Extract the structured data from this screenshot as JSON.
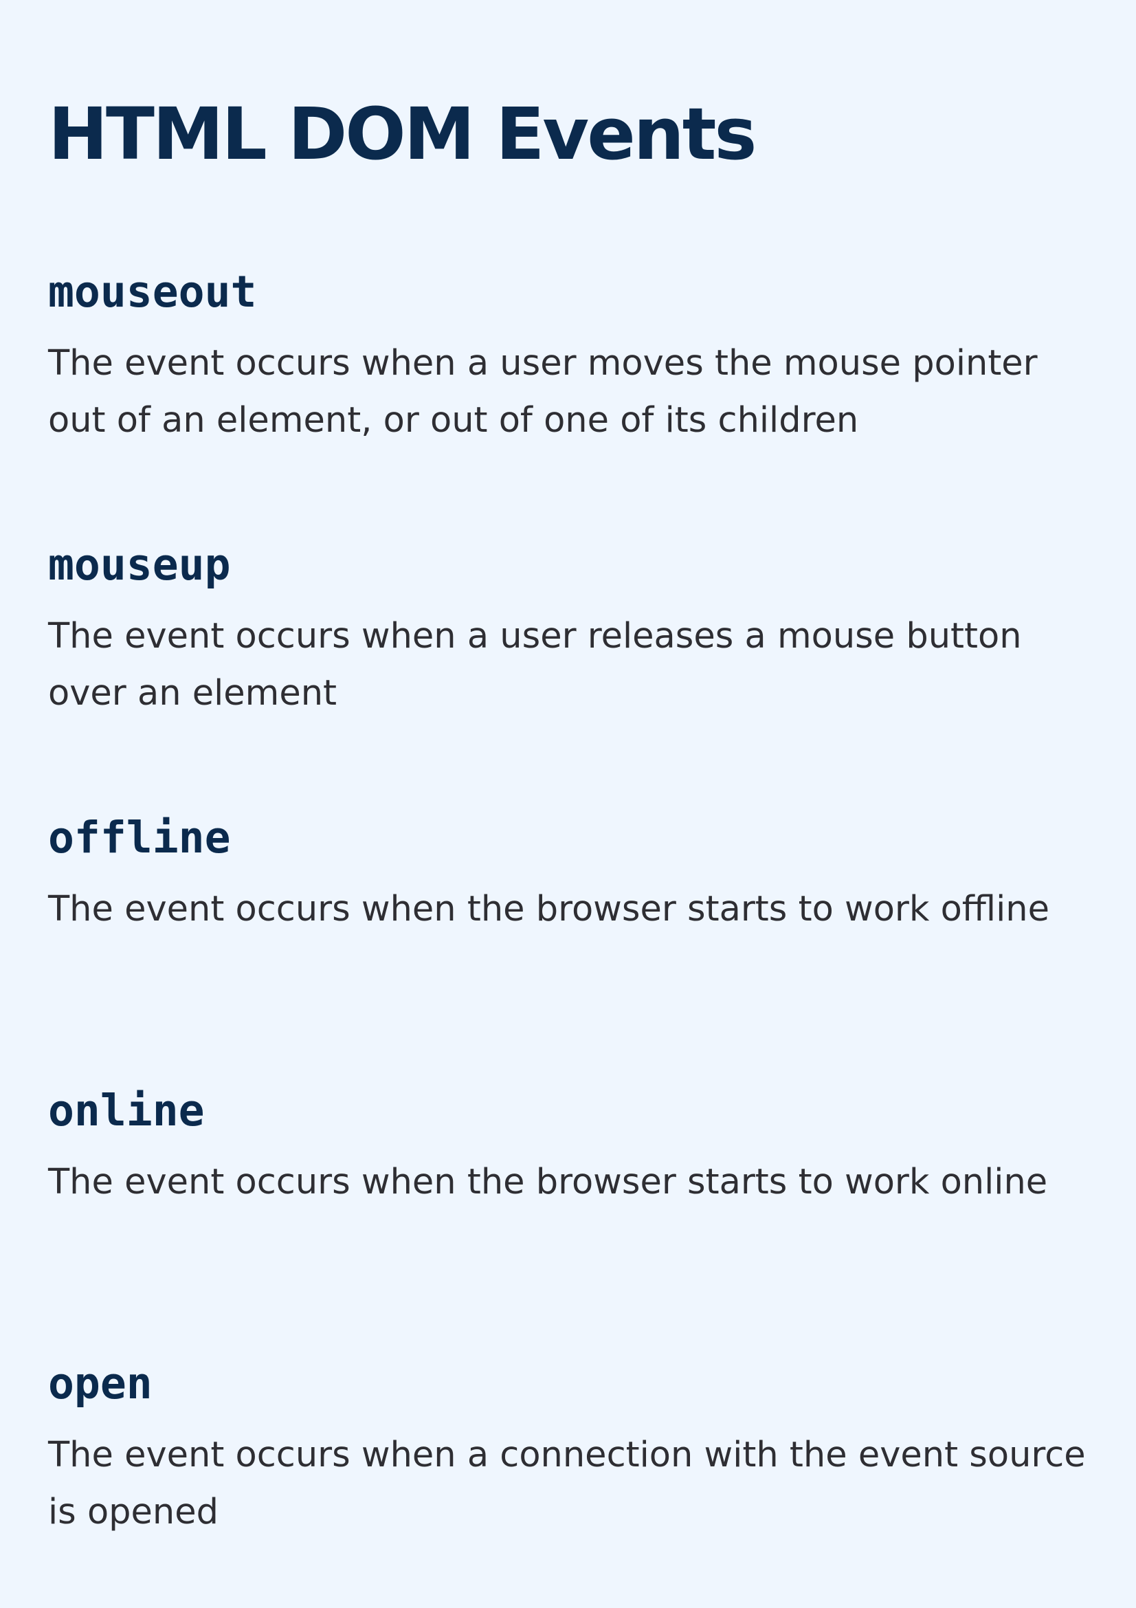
{
  "title": "HTML DOM Events",
  "events": [
    {
      "name": "mouseout",
      "description": "The event occurs when a user moves the mouse pointer out of an element, or out of one of its children"
    },
    {
      "name": "mouseup",
      "description": "The event occurs when a user releases a mouse button over an element"
    },
    {
      "name": "offline",
      "description": "The event occurs when the browser starts to work offline"
    },
    {
      "name": "online",
      "description": "The event occurs when the browser starts to work online"
    },
    {
      "name": "open",
      "description": "The event occurs when a connection with the event source is opened"
    }
  ],
  "colors": {
    "background": "#eff6fe",
    "heading": "#0b2a4d",
    "body_text": "#2e2e33"
  }
}
